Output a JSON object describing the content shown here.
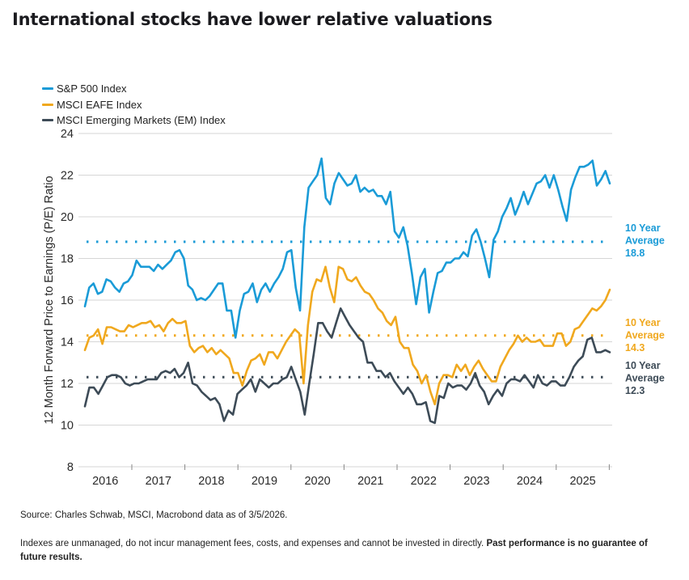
{
  "title": "International stocks have lower relative valuations",
  "footer": {
    "source": "Source: Charles Schwab, MSCI, Macrobond data as of 3/5/2026.",
    "disclaimer_regular": "Indexes are unmanaged, do not incur management fees, costs, and expenses and cannot be invested in directly. ",
    "disclaimer_bold": "Past performance is no guarantee of future results."
  },
  "chart_data": {
    "type": "line",
    "title": "International stocks have lower relative valuations",
    "xlabel": "",
    "ylabel": "12 Month Forward Price to Earnings (P/E) Ratio",
    "ylim": [
      8,
      24
    ],
    "yticks": [
      8,
      10,
      12,
      14,
      16,
      18,
      20,
      22,
      24
    ],
    "xticks": [
      "2016",
      "2017",
      "2018",
      "2019",
      "2020",
      "2021",
      "2022",
      "2023",
      "2024",
      "2025"
    ],
    "x_start": "2016-02",
    "x_frequency": "monthly",
    "grid": "horizontal",
    "legend_position": "top-left",
    "colors": {
      "sp500": "#1a9bd7",
      "eafe": "#f0a81e",
      "em": "#3d4b57"
    },
    "series": [
      {
        "name": "S&P 500 Index",
        "key": "sp500",
        "values": [
          15.7,
          16.6,
          16.8,
          16.3,
          16.4,
          17.0,
          16.9,
          16.6,
          16.4,
          16.8,
          16.9,
          17.2,
          17.9,
          17.6,
          17.6,
          17.6,
          17.4,
          17.7,
          17.5,
          17.7,
          17.9,
          18.3,
          18.4,
          18.0,
          16.7,
          16.5,
          16.0,
          16.1,
          16.0,
          16.2,
          16.5,
          16.8,
          16.8,
          15.5,
          15.5,
          14.2,
          15.5,
          16.3,
          16.4,
          16.8,
          15.9,
          16.5,
          16.8,
          16.4,
          16.8,
          17.1,
          17.5,
          18.3,
          18.4,
          16.6,
          15.5,
          19.5,
          21.4,
          21.7,
          22.0,
          22.8,
          20.9,
          20.6,
          21.6,
          22.1,
          21.8,
          21.5,
          21.6,
          22.0,
          21.2,
          21.4,
          21.2,
          21.3,
          21.0,
          21.0,
          20.6,
          21.2,
          19.3,
          19.0,
          19.5,
          18.6,
          17.3,
          15.8,
          17.1,
          17.5,
          15.4,
          16.4,
          17.3,
          17.4,
          17.8,
          17.8,
          18.0,
          18.0,
          18.3,
          18.1,
          19.1,
          19.4,
          18.8,
          18.0,
          17.1,
          18.9,
          19.3,
          20.0,
          20.4,
          20.9,
          20.1,
          20.6,
          21.2,
          20.6,
          21.1,
          21.6,
          21.7,
          22.0,
          21.4,
          22.0,
          21.3,
          20.5,
          19.8,
          21.3,
          21.9,
          22.4,
          22.4,
          22.5,
          22.7,
          21.5,
          21.8,
          22.2,
          21.6
        ],
        "ten_year_average": 18.8
      },
      {
        "name": "MSCI EAFE Index",
        "key": "eafe",
        "values": [
          13.6,
          14.2,
          14.3,
          14.6,
          13.9,
          14.7,
          14.7,
          14.6,
          14.5,
          14.5,
          14.8,
          14.7,
          14.8,
          14.9,
          14.9,
          15.0,
          14.7,
          14.8,
          14.5,
          14.9,
          15.1,
          14.9,
          14.9,
          15.0,
          13.8,
          13.5,
          13.7,
          13.8,
          13.5,
          13.7,
          13.4,
          13.6,
          13.4,
          13.2,
          12.5,
          12.5,
          11.9,
          12.6,
          13.1,
          13.2,
          13.4,
          12.9,
          13.5,
          13.5,
          13.2,
          13.6,
          14.0,
          14.3,
          14.6,
          14.4,
          12.0,
          14.8,
          16.4,
          17.0,
          16.9,
          17.6,
          16.6,
          15.9,
          17.6,
          17.5,
          17.0,
          16.9,
          17.1,
          16.7,
          16.4,
          16.3,
          16.0,
          15.6,
          15.4,
          15.0,
          14.8,
          15.2,
          14.0,
          13.7,
          13.7,
          12.9,
          12.6,
          12.0,
          12.4,
          11.6,
          11.0,
          12.0,
          12.4,
          12.4,
          12.3,
          12.9,
          12.6,
          12.9,
          12.4,
          12.8,
          13.1,
          12.7,
          12.4,
          12.1,
          12.1,
          12.8,
          13.2,
          13.6,
          13.9,
          14.3,
          14.0,
          14.2,
          14.0,
          14.0,
          14.1,
          13.8,
          13.8,
          13.8,
          14.4,
          14.4,
          13.8,
          14.0,
          14.6,
          14.7,
          15.0,
          15.3,
          15.6,
          15.5,
          15.7,
          16.0,
          16.5
        ],
        "ten_year_average": 14.3
      },
      {
        "name": "MSCI Emerging Markets (EM) Index",
        "key": "em",
        "values": [
          10.9,
          11.8,
          11.8,
          11.5,
          11.9,
          12.3,
          12.4,
          12.4,
          12.3,
          12.0,
          11.9,
          12.0,
          12.0,
          12.1,
          12.2,
          12.2,
          12.2,
          12.5,
          12.6,
          12.5,
          12.7,
          12.3,
          12.5,
          13.0,
          12.0,
          11.9,
          11.6,
          11.4,
          11.2,
          11.3,
          11.0,
          10.2,
          10.7,
          10.5,
          11.5,
          11.7,
          11.9,
          12.2,
          11.6,
          12.2,
          12.0,
          11.8,
          12.0,
          12.0,
          12.2,
          12.3,
          12.8,
          12.2,
          11.6,
          10.5,
          12.0,
          13.4,
          14.9,
          14.9,
          14.5,
          14.2,
          14.9,
          15.6,
          15.2,
          14.8,
          14.5,
          14.2,
          14.0,
          13.0,
          13.0,
          12.6,
          12.6,
          12.3,
          12.5,
          12.1,
          11.8,
          11.5,
          11.8,
          11.5,
          11.0,
          11.0,
          11.1,
          10.2,
          10.1,
          11.4,
          11.3,
          12.0,
          11.8,
          11.9,
          11.9,
          11.7,
          12.0,
          12.5,
          11.9,
          11.6,
          11.0,
          11.4,
          11.7,
          11.4,
          12.0,
          12.2,
          12.2,
          12.1,
          12.4,
          12.1,
          11.8,
          12.4,
          12.0,
          11.9,
          12.1,
          12.1,
          11.9,
          11.9,
          12.3,
          12.8,
          13.1,
          13.3,
          14.1,
          14.2,
          13.5,
          13.5,
          13.6,
          13.5
        ],
        "ten_year_average": 12.3
      }
    ],
    "annotations": [
      {
        "series": "sp500",
        "lines": [
          "10 Year",
          "Average",
          "18.8"
        ]
      },
      {
        "series": "eafe",
        "lines": [
          "10 Year",
          "Average",
          "14.3"
        ]
      },
      {
        "series": "em",
        "lines": [
          "10 Year",
          "Average",
          "12.3"
        ]
      }
    ]
  }
}
